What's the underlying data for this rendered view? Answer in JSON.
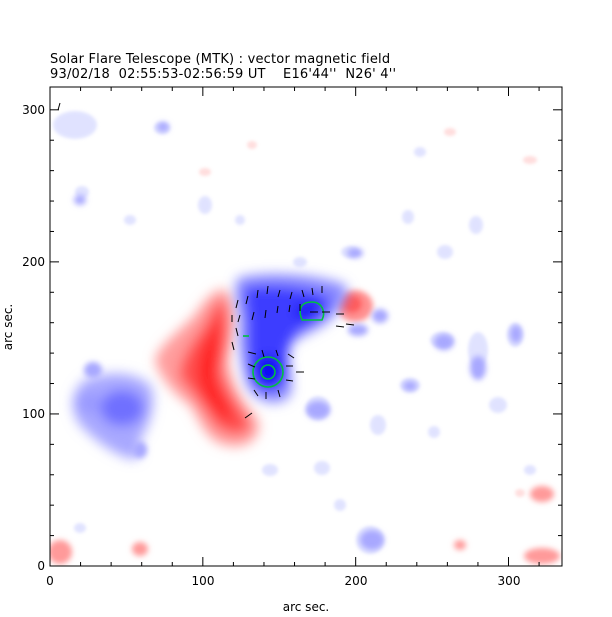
{
  "header": {
    "title": "Solar Flare Telescope (MTK) : vector magnetic field",
    "subtitle": "93/02/18  02:55:53-02:56:59 UT    E16'44''  N26' 4''"
  },
  "axes": {
    "xlabel": "arc sec.",
    "ylabel": "arc sec.",
    "xlim": [
      0,
      335
    ],
    "ylim": [
      0,
      315
    ],
    "x_ticks": [
      "0",
      "100",
      "200",
      "300"
    ],
    "y_ticks": [
      "0",
      "100",
      "200",
      "300"
    ]
  },
  "colors": {
    "positive_polarity": "#ff0000",
    "negative_polarity": "#0000ff",
    "contour": "#00c040",
    "vectors": "#000000"
  }
}
